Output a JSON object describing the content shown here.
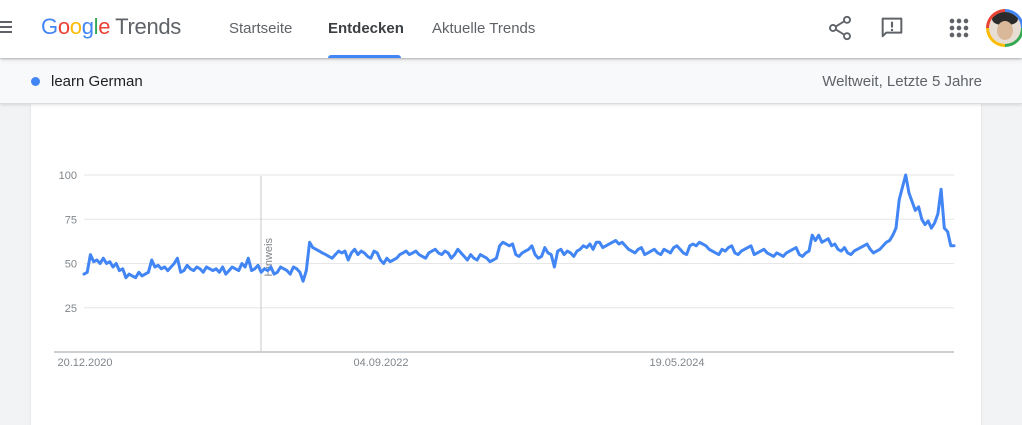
{
  "header": {
    "logo": {
      "google": [
        "G",
        "o",
        "o",
        "g",
        "l",
        "e"
      ],
      "product": "Trends"
    },
    "nav": [
      {
        "label": "Startseite",
        "active": false
      },
      {
        "label": "Entdecken",
        "active": true
      },
      {
        "label": "Aktuelle Trends",
        "active": false
      }
    ],
    "icons": [
      "menu-icon",
      "share-icon",
      "feedback-icon",
      "apps-grid-icon",
      "account-avatar"
    ]
  },
  "comparison": {
    "term": "learn German",
    "term_color": "#4285f4",
    "scope": "Weltweit, Letzte 5 Jahre"
  },
  "chart_data": {
    "type": "line",
    "series": [
      {
        "name": "learn German",
        "color": "#4285f4",
        "values": [
          44,
          45,
          55,
          51,
          52,
          50,
          53,
          50,
          51,
          48,
          50,
          46,
          47,
          42,
          44,
          43,
          42,
          45,
          43,
          44,
          45,
          52,
          48,
          49,
          47,
          48,
          46,
          48,
          50,
          53,
          45,
          46,
          49,
          47,
          46,
          48,
          47,
          45,
          48,
          47,
          46,
          47,
          45,
          48,
          44,
          46,
          48,
          47,
          46,
          50,
          48,
          53,
          46,
          47,
          49,
          45,
          47,
          46,
          48,
          44,
          45,
          48,
          47,
          46,
          44,
          48,
          47,
          45,
          40,
          46,
          62,
          59,
          58,
          57,
          56,
          55,
          54,
          53,
          55,
          57,
          56,
          57,
          52,
          56,
          58,
          55,
          57,
          56,
          54,
          53,
          57,
          56,
          52,
          50,
          53,
          51,
          52,
          53,
          55,
          56,
          57,
          55,
          56,
          57,
          55,
          54,
          53,
          56,
          57,
          58,
          56,
          55,
          57,
          56,
          53,
          55,
          58,
          56,
          54,
          52,
          55,
          53,
          52,
          55,
          54,
          53,
          51,
          52,
          53,
          60,
          62,
          61,
          60,
          61,
          55,
          54,
          56,
          57,
          58,
          60,
          55,
          53,
          54,
          59,
          56,
          55,
          48,
          57,
          58,
          55,
          57,
          56,
          54,
          57,
          58,
          60,
          59,
          61,
          58,
          62,
          62,
          59,
          60,
          61,
          62,
          63,
          61,
          62,
          60,
          58,
          57,
          56,
          58,
          59,
          55,
          56,
          57,
          58,
          56,
          55,
          58,
          57,
          56,
          59,
          60,
          58,
          56,
          55,
          60,
          61,
          60,
          62,
          61,
          60,
          58,
          57,
          56,
          55,
          58,
          57,
          59,
          60,
          56,
          55,
          57,
          58,
          59,
          60,
          55,
          56,
          57,
          58,
          56,
          55,
          54,
          56,
          55,
          54,
          56,
          57,
          58,
          59,
          55,
          54,
          56,
          57,
          66,
          63,
          66,
          62,
          63,
          64,
          60,
          61,
          58,
          57,
          59,
          56,
          55,
          57,
          58,
          59,
          60,
          61,
          58,
          56,
          57,
          58,
          60,
          62,
          63,
          66,
          70,
          86,
          93,
          100,
          90,
          85,
          80,
          82,
          75,
          72,
          74,
          70,
          73,
          78,
          92,
          70,
          68,
          60,
          60
        ]
      }
    ],
    "x_labels": [
      "20.12.2020",
      "04.09.2022",
      "19.05.2024"
    ],
    "y_ticks": [
      25,
      50,
      75,
      100
    ],
    "ylim": [
      0,
      100
    ],
    "annotation": {
      "label": "Hinweis"
    },
    "grid": true,
    "legend": "none"
  }
}
